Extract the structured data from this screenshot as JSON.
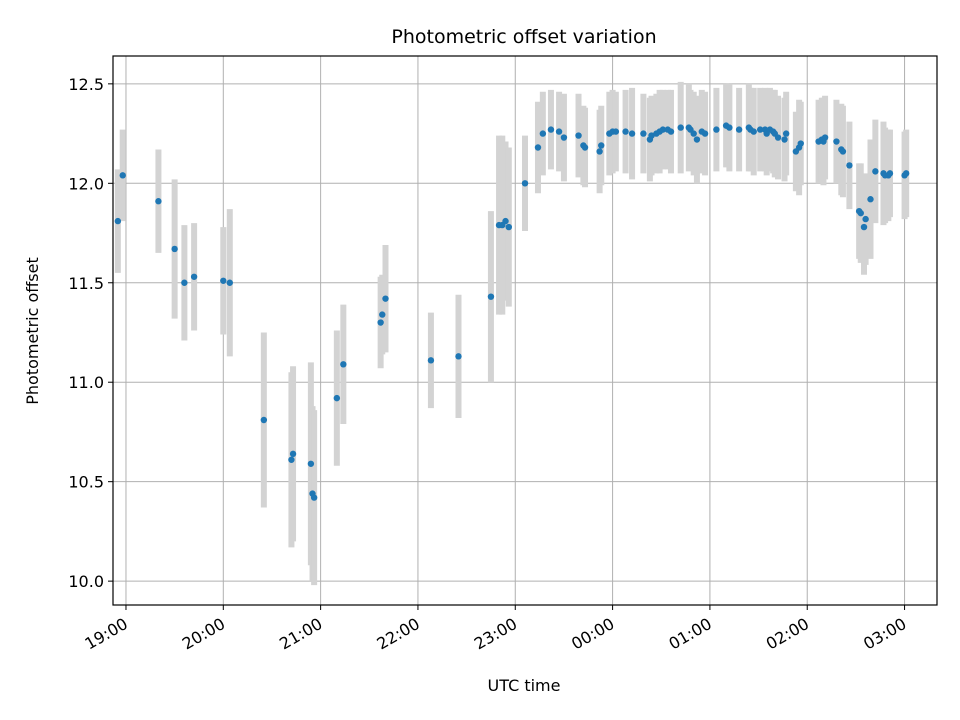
{
  "chart_data": {
    "type": "scatter",
    "title": "Photometric offset variation",
    "xlabel": "UTC time",
    "ylabel": "Photometric offset",
    "x_unit": "UTC clock time (HH:MM)",
    "xlim": [
      "18:52",
      "03:20"
    ],
    "ylim": [
      9.88,
      12.64
    ],
    "yticks": [
      10.0,
      10.5,
      11.0,
      11.5,
      12.0,
      12.5
    ],
    "ytick_labels": [
      "10.0",
      "10.5",
      "11.0",
      "11.5",
      "12.0",
      "12.5"
    ],
    "xticks": [
      "19:00",
      "20:00",
      "21:00",
      "22:00",
      "23:00",
      "00:00",
      "01:00",
      "02:00",
      "03:00"
    ],
    "xtick_labels": [
      "19:00",
      "20:00",
      "21:00",
      "22:00",
      "23:00",
      "00:00",
      "01:00",
      "02:00",
      "03:00"
    ],
    "grid": true,
    "colors": {
      "points": "#1f77b4",
      "errorbars": "#d3d3d3",
      "grid": "#b0b0b0"
    },
    "series": [
      {
        "x": [
          "18:55",
          "18:58",
          "19:20",
          "19:30",
          "19:36",
          "19:42",
          "20:00",
          "20:04",
          "20:25",
          "20:42",
          "20:43",
          "20:54",
          "20:55",
          "20:56",
          "21:10",
          "21:14",
          "21:37",
          "21:38",
          "21:40",
          "22:08",
          "22:25",
          "22:45",
          "22:50",
          "22:52",
          "22:54",
          "22:56",
          "23:06",
          "23:14",
          "23:17",
          "23:22",
          "23:27",
          "23:30",
          "23:39",
          "23:42",
          "23:43",
          "23:52",
          "23:53",
          "23:58",
          "24:00",
          "24:02",
          "24:08",
          "24:12",
          "24:19",
          "24:23",
          "24:24",
          "24:27",
          "24:29",
          "24:31",
          "24:34",
          "24:36",
          "24:42",
          "24:47",
          "24:48",
          "24:50",
          "24:52",
          "24:55",
          "24:57",
          "25:04",
          "25:10",
          "25:12",
          "25:18",
          "25:24",
          "25:25",
          "25:27",
          "25:31",
          "25:34",
          "25:35",
          "25:37",
          "25:39",
          "25:40",
          "25:42",
          "25:46",
          "25:47",
          "25:53",
          "25:55",
          "25:56",
          "26:07",
          "26:09",
          "26:10",
          "26:11",
          "26:18",
          "26:21",
          "26:22",
          "26:26",
          "26:32",
          "26:33",
          "26:35",
          "26:36",
          "26:39",
          "26:42",
          "26:47",
          "26:48",
          "26:50",
          "26:51",
          "27:00",
          "27:01"
        ],
        "y": [
          11.81,
          12.04,
          11.91,
          11.67,
          11.5,
          11.53,
          11.51,
          11.5,
          10.81,
          10.61,
          10.64,
          10.59,
          10.44,
          10.42,
          10.92,
          11.09,
          11.3,
          11.34,
          11.42,
          11.11,
          11.13,
          11.43,
          11.79,
          11.79,
          11.81,
          11.78,
          12.0,
          12.18,
          12.25,
          12.27,
          12.26,
          12.23,
          12.24,
          12.19,
          12.18,
          12.16,
          12.19,
          12.25,
          12.26,
          12.26,
          12.26,
          12.25,
          12.25,
          12.22,
          12.24,
          12.25,
          12.26,
          12.27,
          12.27,
          12.26,
          12.28,
          12.28,
          12.27,
          12.25,
          12.22,
          12.26,
          12.25,
          12.27,
          12.29,
          12.28,
          12.27,
          12.28,
          12.27,
          12.26,
          12.27,
          12.27,
          12.25,
          12.27,
          12.26,
          12.25,
          12.23,
          12.22,
          12.25,
          12.16,
          12.18,
          12.2,
          12.21,
          12.22,
          12.21,
          12.23,
          12.21,
          12.17,
          12.16,
          12.09,
          11.86,
          11.85,
          11.78,
          11.82,
          11.92,
          12.06,
          12.05,
          12.04,
          12.04,
          12.05,
          12.04,
          12.05
        ],
        "yerr": [
          0.26,
          0.23,
          0.26,
          0.35,
          0.29,
          0.27,
          0.27,
          0.37,
          0.44,
          0.44,
          0.44,
          0.51,
          0.44,
          0.44,
          0.34,
          0.3,
          0.23,
          0.2,
          0.27,
          0.24,
          0.31,
          0.43,
          0.45,
          0.45,
          0.4,
          0.4,
          0.24,
          0.23,
          0.21,
          0.2,
          0.2,
          0.22,
          0.21,
          0.2,
          0.2,
          0.21,
          0.2,
          0.21,
          0.21,
          0.2,
          0.21,
          0.23,
          0.2,
          0.21,
          0.2,
          0.2,
          0.21,
          0.2,
          0.2,
          0.21,
          0.23,
          0.22,
          0.2,
          0.21,
          0.22,
          0.21,
          0.21,
          0.21,
          0.21,
          0.22,
          0.21,
          0.22,
          0.21,
          0.22,
          0.21,
          0.21,
          0.21,
          0.21,
          0.21,
          0.22,
          0.21,
          0.21,
          0.21,
          0.2,
          0.24,
          0.21,
          0.21,
          0.21,
          0.22,
          0.21,
          0.21,
          0.23,
          0.23,
          0.22,
          0.24,
          0.25,
          0.24,
          0.23,
          0.3,
          0.26,
          0.26,
          0.24,
          0.23,
          0.22,
          0.22,
          0.22
        ]
      }
    ]
  }
}
